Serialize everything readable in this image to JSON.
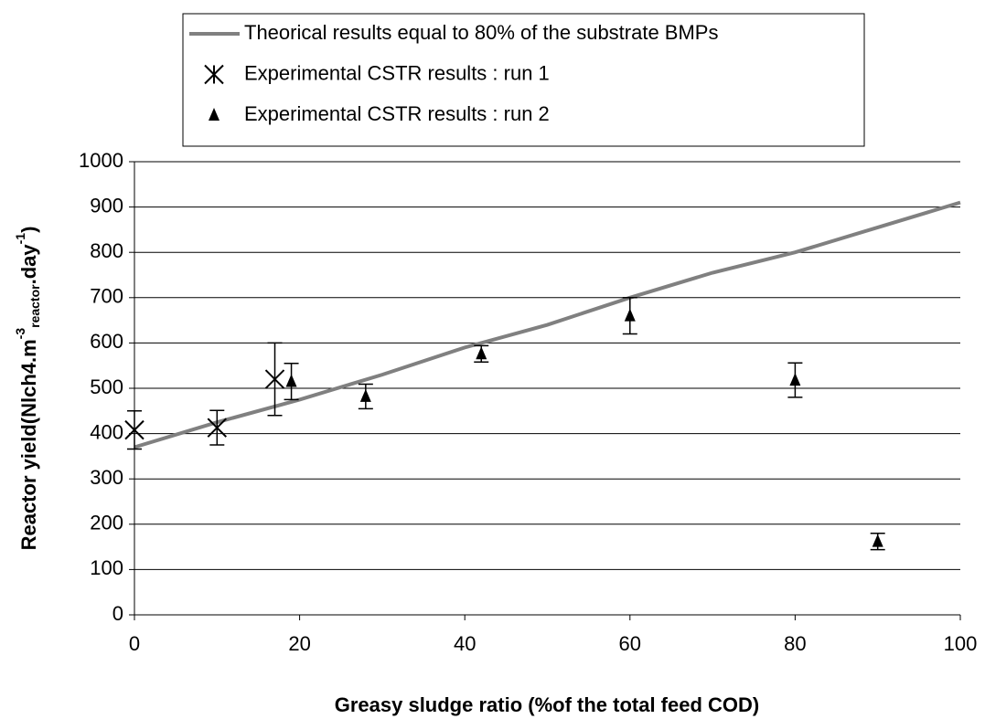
{
  "chart_data": {
    "type": "scatter",
    "xlabel": "Greasy sludge ratio (%of the total feed COD)",
    "ylabel": [
      "Reactor yield(Nlch4.m",
      "-3",
      "reactor",
      ".day",
      "-1",
      ")"
    ],
    "xlim": [
      0,
      100
    ],
    "xticks": [
      0,
      20,
      40,
      60,
      80,
      100
    ],
    "ylim": [
      0,
      1000
    ],
    "yticks": [
      0,
      100,
      200,
      300,
      400,
      500,
      600,
      700,
      800,
      900,
      1000
    ],
    "grid": true,
    "legend": "top",
    "series": [
      {
        "name": "Theorical results equal to 80% of the substrate BMPs",
        "mode": "line",
        "color": "#808080",
        "x": [
          0,
          10,
          20,
          30,
          40,
          50,
          60,
          70,
          80,
          90,
          100
        ],
        "values": [
          370,
          425,
          475,
          530,
          590,
          640,
          700,
          755,
          800,
          855,
          910
        ]
      },
      {
        "name": "Experimental CSTR results : run 1",
        "mode": "markers",
        "marker": "x",
        "color": "#000000",
        "x": [
          0,
          10,
          17
        ],
        "values": [
          408,
          413,
          520
        ],
        "errors": [
          42,
          38,
          80
        ]
      },
      {
        "name": "Experimental CSTR results : run 2",
        "mode": "markers",
        "marker": "triangle",
        "color": "#000000",
        "x": [
          19,
          28,
          42,
          60,
          80,
          90
        ],
        "values": [
          515,
          482,
          576,
          660,
          518,
          162
        ],
        "errors": [
          40,
          27,
          18,
          40,
          38,
          18
        ]
      }
    ]
  }
}
